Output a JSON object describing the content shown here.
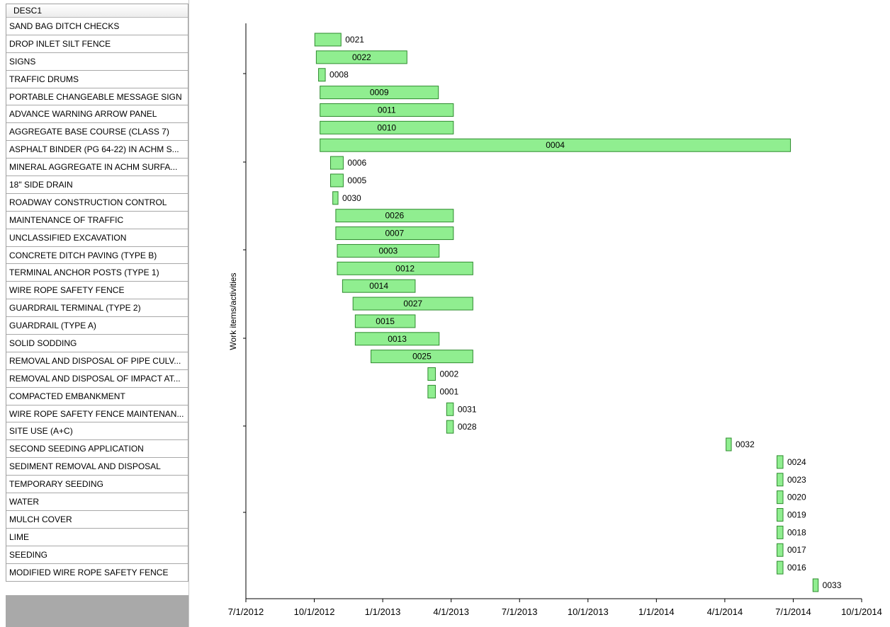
{
  "grid": {
    "header": "DESC1",
    "rows": [
      "SAND BAG DITCH CHECKS",
      "DROP INLET SILT FENCE",
      "SIGNS",
      "TRAFFIC DRUMS",
      "PORTABLE CHANGEABLE MESSAGE SIGN",
      "ADVANCE WARNING ARROW PANEL",
      "AGGREGATE BASE COURSE (CLASS 7)",
      "ASPHALT BINDER (PG 64-22) IN ACHM S...",
      "MINERAL AGGREGATE IN ACHM SURFA...",
      "18\" SIDE DRAIN",
      "ROADWAY CONSTRUCTION CONTROL",
      "MAINTENANCE OF TRAFFIC",
      "UNCLASSIFIED EXCAVATION",
      "CONCRETE DITCH PAVING (TYPE B)",
      "TERMINAL ANCHOR POSTS (TYPE 1)",
      "WIRE ROPE SAFETY FENCE",
      "GUARDRAIL TERMINAL (TYPE 2)",
      "GUARDRAIL (TYPE A)",
      "SOLID SODDING",
      "REMOVAL AND DISPOSAL OF PIPE CULV...",
      "REMOVAL AND DISPOSAL OF IMPACT AT...",
      "COMPACTED EMBANKMENT",
      "WIRE ROPE SAFETY FENCE MAINTENAN...",
      "SITE USE (A+C)",
      "SECOND SEEDING APPLICATION",
      "SEDIMENT REMOVAL AND DISPOSAL",
      "TEMPORARY SEEDING",
      "WATER",
      "MULCH COVER",
      "LIME",
      "SEEDING",
      "MODIFIED WIRE ROPE SAFETY FENCE"
    ]
  },
  "chart_data": {
    "type": "bar",
    "orientation": "horizontal-gantt",
    "ylabel": "Work items/activities",
    "xlabel": "",
    "x_ticks": [
      "7/1/2012",
      "10/1/2012",
      "1/1/2013",
      "4/1/2013",
      "7/1/2013",
      "10/1/2013",
      "1/1/2014",
      "4/1/2014",
      "7/1/2014",
      "10/1/2014"
    ],
    "xlim": [
      "2012-07-01",
      "2014-10-01"
    ],
    "bar_color": "#90ee90",
    "bar_border": "#2e8b2e",
    "tasks": [
      {
        "id": "0021",
        "start": "2012-10-01",
        "end": "2012-11-05"
      },
      {
        "id": "0022",
        "start": "2012-10-03",
        "end": "2013-02-01"
      },
      {
        "id": "0008",
        "start": "2012-10-06",
        "end": "2012-10-15"
      },
      {
        "id": "0009",
        "start": "2012-10-08",
        "end": "2013-03-15"
      },
      {
        "id": "0011",
        "start": "2012-10-08",
        "end": "2013-04-04"
      },
      {
        "id": "0010",
        "start": "2012-10-08",
        "end": "2013-04-04"
      },
      {
        "id": "0004",
        "start": "2012-10-08",
        "end": "2014-06-28"
      },
      {
        "id": "0006",
        "start": "2012-10-22",
        "end": "2012-11-08"
      },
      {
        "id": "0005",
        "start": "2012-10-22",
        "end": "2012-11-08"
      },
      {
        "id": "0030",
        "start": "2012-10-25",
        "end": "2012-11-01"
      },
      {
        "id": "0026",
        "start": "2012-10-29",
        "end": "2013-04-04"
      },
      {
        "id": "0007",
        "start": "2012-10-29",
        "end": "2013-04-04"
      },
      {
        "id": "0003",
        "start": "2012-10-31",
        "end": "2013-03-16"
      },
      {
        "id": "0012",
        "start": "2012-10-31",
        "end": "2013-04-30"
      },
      {
        "id": "0014",
        "start": "2012-11-07",
        "end": "2013-02-12"
      },
      {
        "id": "0027",
        "start": "2012-11-21",
        "end": "2013-04-30"
      },
      {
        "id": "0015",
        "start": "2012-11-24",
        "end": "2013-02-12"
      },
      {
        "id": "0013",
        "start": "2012-11-24",
        "end": "2013-03-16"
      },
      {
        "id": "0025",
        "start": "2012-12-15",
        "end": "2013-04-30"
      },
      {
        "id": "0002",
        "start": "2013-03-01",
        "end": "2013-03-11"
      },
      {
        "id": "0001",
        "start": "2013-03-01",
        "end": "2013-03-11"
      },
      {
        "id": "0031",
        "start": "2013-03-26",
        "end": "2013-04-04"
      },
      {
        "id": "0028",
        "start": "2013-03-26",
        "end": "2013-04-04"
      },
      {
        "id": "0032",
        "start": "2014-04-03",
        "end": "2014-04-10"
      },
      {
        "id": "0024",
        "start": "2014-06-10",
        "end": "2014-06-18"
      },
      {
        "id": "0023",
        "start": "2014-06-10",
        "end": "2014-06-18"
      },
      {
        "id": "0020",
        "start": "2014-06-10",
        "end": "2014-06-18"
      },
      {
        "id": "0019",
        "start": "2014-06-10",
        "end": "2014-06-18"
      },
      {
        "id": "0018",
        "start": "2014-06-10",
        "end": "2014-06-18"
      },
      {
        "id": "0017",
        "start": "2014-06-10",
        "end": "2014-06-18"
      },
      {
        "id": "0016",
        "start": "2014-06-10",
        "end": "2014-06-18"
      },
      {
        "id": "0033",
        "start": "2014-07-28",
        "end": "2014-08-04"
      }
    ]
  }
}
